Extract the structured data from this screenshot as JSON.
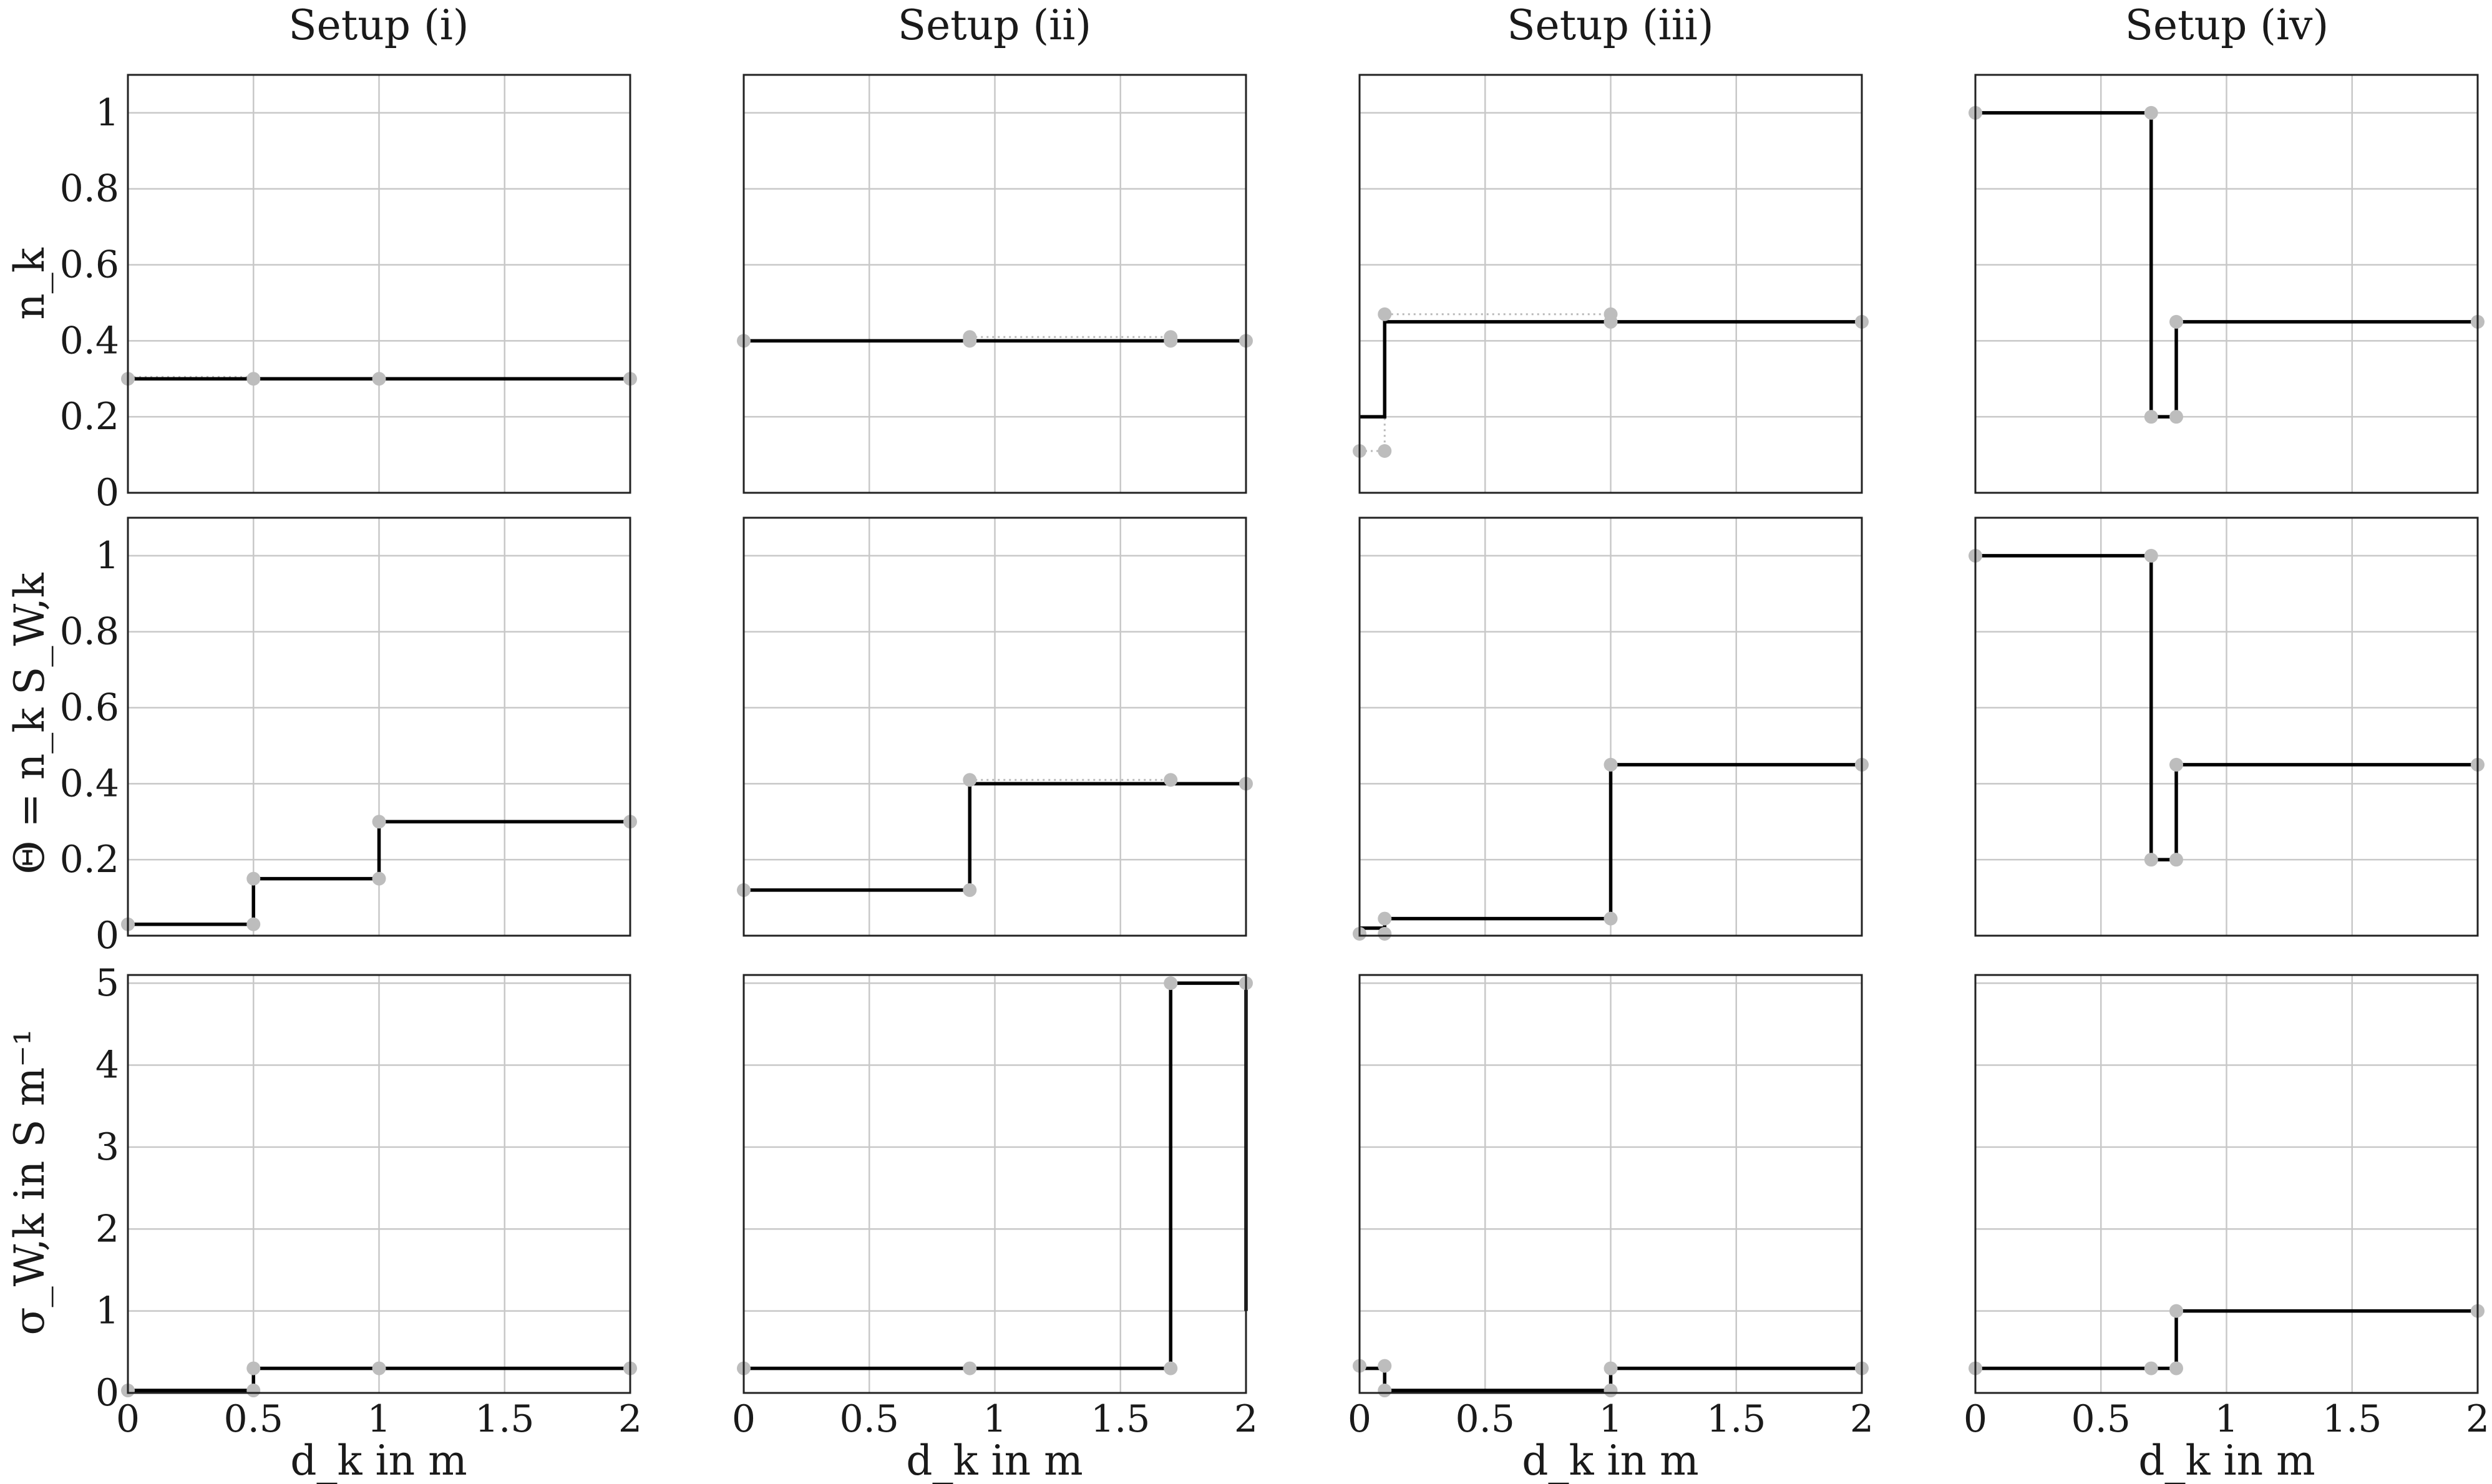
{
  "column_titles": [
    "Setup (i)",
    "Setup (ii)",
    "Setup (iii)",
    "Setup (iv)"
  ],
  "row_ylabels": [
    "n_k",
    "Θ = n_k S_W,k",
    "σ_W,k in S m⁻¹"
  ],
  "xlabel": "d_k in m",
  "chart_data": [
    {
      "type": "line",
      "setup": "Setup (i)",
      "quantity": "n_k",
      "xlabel": "",
      "ylabel": "n_k",
      "xlim": [
        0,
        2
      ],
      "ylim": [
        0,
        1.1
      ],
      "xticks": [
        "0",
        "0.5",
        "1",
        "1.5",
        "2"
      ],
      "yticks": [
        "0",
        "0.2",
        "0.4",
        "0.6",
        "0.8",
        "1"
      ],
      "grid": true,
      "series": [
        {
          "role": "step",
          "x": [
            0,
            0.5,
            1,
            2
          ],
          "y": [
            0.3,
            0.3,
            0.3,
            0.3
          ]
        },
        {
          "role": "markers",
          "x": [
            0,
            0.5,
            1,
            2
          ],
          "y": [
            0.3,
            0.3,
            0.3,
            0.3
          ]
        },
        {
          "role": "dotted-reference",
          "x": [
            0,
            0.5
          ],
          "y": [
            0.305,
            0.305
          ]
        }
      ]
    },
    {
      "type": "line",
      "setup": "Setup (ii)",
      "quantity": "n_k",
      "xlabel": "",
      "ylabel": "",
      "xlim": [
        0,
        2
      ],
      "ylim": [
        0,
        1.1
      ],
      "xticks": [
        "0",
        "0.5",
        "1",
        "1.5",
        "2"
      ],
      "yticks": [
        "0",
        "0.2",
        "0.4",
        "0.6",
        "0.8",
        "1"
      ],
      "grid": true,
      "series": [
        {
          "role": "step",
          "x": [
            0,
            0.9,
            1.7,
            2
          ],
          "y": [
            0.4,
            0.4,
            0.4,
            0.4
          ]
        },
        {
          "role": "markers",
          "x": [
            0,
            0.9,
            0.9,
            1.7,
            1.7,
            2
          ],
          "y": [
            0.4,
            0.41,
            0.4,
            0.41,
            0.4,
            0.4
          ]
        },
        {
          "role": "dotted-reference",
          "x": [
            0.9,
            1.7
          ],
          "y": [
            0.41,
            0.41
          ]
        }
      ]
    },
    {
      "type": "line",
      "setup": "Setup (iii)",
      "quantity": "n_k",
      "xlabel": "",
      "ylabel": "",
      "xlim": [
        0,
        2
      ],
      "ylim": [
        0,
        1.1
      ],
      "xticks": [
        "0",
        "0.5",
        "1",
        "1.5",
        "2"
      ],
      "yticks": [
        "0",
        "0.2",
        "0.4",
        "0.6",
        "0.8",
        "1"
      ],
      "grid": true,
      "series": [
        {
          "role": "step",
          "x": [
            0,
            0.1,
            0.1,
            2
          ],
          "y": [
            0.2,
            0.2,
            0.45,
            0.45
          ]
        },
        {
          "role": "markers",
          "x": [
            0,
            0.1,
            0.1,
            1,
            1,
            2
          ],
          "y": [
            0.11,
            0.11,
            0.47,
            0.47,
            0.45,
            0.45
          ]
        },
        {
          "role": "dotted-reference",
          "x": [
            0,
            0.1,
            0.1,
            1
          ],
          "y": [
            0.11,
            0.11,
            0.47,
            0.47
          ]
        }
      ]
    },
    {
      "type": "line",
      "setup": "Setup (iv)",
      "quantity": "n_k",
      "xlabel": "",
      "ylabel": "",
      "xlim": [
        0,
        2
      ],
      "ylim": [
        0,
        1.1
      ],
      "xticks": [
        "0",
        "0.5",
        "1",
        "1.5",
        "2"
      ],
      "yticks": [
        "0",
        "0.2",
        "0.4",
        "0.6",
        "0.8",
        "1"
      ],
      "grid": true,
      "series": [
        {
          "role": "step",
          "x": [
            0,
            0.7,
            0.7,
            0.8,
            0.8,
            2
          ],
          "y": [
            1,
            1,
            0.2,
            0.2,
            0.45,
            0.45
          ]
        },
        {
          "role": "markers",
          "x": [
            0,
            0.7,
            0.7,
            0.8,
            0.8,
            2
          ],
          "y": [
            1,
            1,
            0.2,
            0.2,
            0.45,
            0.45
          ]
        }
      ]
    },
    {
      "type": "line",
      "setup": "Setup (i)",
      "quantity": "Θ = n_k S_W,k",
      "xlabel": "",
      "ylabel": "Θ = n_k S_W,k",
      "xlim": [
        0,
        2
      ],
      "ylim": [
        0,
        1.1
      ],
      "xticks": [
        "0",
        "0.5",
        "1",
        "1.5",
        "2"
      ],
      "yticks": [
        "0",
        "0.2",
        "0.4",
        "0.6",
        "0.8",
        "1"
      ],
      "grid": true,
      "series": [
        {
          "role": "step",
          "x": [
            0,
            0.5,
            0.5,
            1,
            1,
            2
          ],
          "y": [
            0.03,
            0.03,
            0.15,
            0.15,
            0.3,
            0.3
          ]
        },
        {
          "role": "markers",
          "x": [
            0,
            0.5,
            0.5,
            1,
            1,
            2
          ],
          "y": [
            0.03,
            0.03,
            0.15,
            0.15,
            0.3,
            0.3
          ]
        }
      ]
    },
    {
      "type": "line",
      "setup": "Setup (ii)",
      "quantity": "Θ = n_k S_W,k",
      "xlabel": "",
      "ylabel": "",
      "xlim": [
        0,
        2
      ],
      "ylim": [
        0,
        1.1
      ],
      "xticks": [
        "0",
        "0.5",
        "1",
        "1.5",
        "2"
      ],
      "yticks": [
        "0",
        "0.2",
        "0.4",
        "0.6",
        "0.8",
        "1"
      ],
      "grid": true,
      "series": [
        {
          "role": "step",
          "x": [
            0,
            0.9,
            0.9,
            2
          ],
          "y": [
            0.12,
            0.12,
            0.4,
            0.4
          ]
        },
        {
          "role": "markers",
          "x": [
            0,
            0.9,
            0.9,
            1.7,
            2
          ],
          "y": [
            0.12,
            0.12,
            0.41,
            0.41,
            0.4
          ]
        },
        {
          "role": "dotted-reference",
          "x": [
            0.9,
            1.7
          ],
          "y": [
            0.41,
            0.41
          ]
        }
      ]
    },
    {
      "type": "line",
      "setup": "Setup (iii)",
      "quantity": "Θ = n_k S_W,k",
      "xlabel": "",
      "ylabel": "",
      "xlim": [
        0,
        2
      ],
      "ylim": [
        0,
        1.1
      ],
      "xticks": [
        "0",
        "0.5",
        "1",
        "1.5",
        "2"
      ],
      "yticks": [
        "0",
        "0.2",
        "0.4",
        "0.6",
        "0.8",
        "1"
      ],
      "grid": true,
      "series": [
        {
          "role": "step",
          "x": [
            0,
            0.1,
            0.1,
            1,
            1,
            2
          ],
          "y": [
            0.02,
            0.02,
            0.045,
            0.045,
            0.45,
            0.45
          ]
        },
        {
          "role": "markers",
          "x": [
            0,
            0.1,
            0.1,
            1,
            1,
            2
          ],
          "y": [
            0.005,
            0.005,
            0.045,
            0.045,
            0.45,
            0.45
          ]
        }
      ]
    },
    {
      "type": "line",
      "setup": "Setup (iv)",
      "quantity": "Θ = n_k S_W,k",
      "xlabel": "",
      "ylabel": "",
      "xlim": [
        0,
        2
      ],
      "ylim": [
        0,
        1.1
      ],
      "xticks": [
        "0",
        "0.5",
        "1",
        "1.5",
        "2"
      ],
      "yticks": [
        "0",
        "0.2",
        "0.4",
        "0.6",
        "0.8",
        "1"
      ],
      "grid": true,
      "series": [
        {
          "role": "step",
          "x": [
            0,
            0.7,
            0.7,
            0.8,
            0.8,
            2
          ],
          "y": [
            1,
            1,
            0.2,
            0.2,
            0.45,
            0.45
          ]
        },
        {
          "role": "markers",
          "x": [
            0,
            0.7,
            0.7,
            0.8,
            0.8,
            2
          ],
          "y": [
            1,
            1,
            0.2,
            0.2,
            0.45,
            0.45
          ]
        }
      ]
    },
    {
      "type": "line",
      "setup": "Setup (i)",
      "quantity": "σ_W,k",
      "xlabel": "d_k in m",
      "ylabel": "σ_W,k in S m⁻¹",
      "xlim": [
        0,
        2
      ],
      "ylim": [
        0,
        5.1
      ],
      "xticks": [
        "0",
        "0.5",
        "1",
        "1.5",
        "2"
      ],
      "yticks": [
        "0",
        "1",
        "2",
        "3",
        "4",
        "5"
      ],
      "grid": true,
      "series": [
        {
          "role": "step",
          "x": [
            0,
            0.5,
            0.5,
            2
          ],
          "y": [
            0.03,
            0.03,
            0.3,
            0.3
          ]
        },
        {
          "role": "markers",
          "x": [
            0,
            0.5,
            0.5,
            1,
            2
          ],
          "y": [
            0.03,
            0.03,
            0.3,
            0.3,
            0.3
          ]
        }
      ]
    },
    {
      "type": "line",
      "setup": "Setup (ii)",
      "quantity": "σ_W,k",
      "xlabel": "d_k in m",
      "ylabel": "",
      "xlim": [
        0,
        2
      ],
      "ylim": [
        0,
        5.1
      ],
      "xticks": [
        "0",
        "0.5",
        "1",
        "1.5",
        "2"
      ],
      "yticks": [
        "0",
        "1",
        "2",
        "3",
        "4",
        "5"
      ],
      "grid": true,
      "series": [
        {
          "role": "step",
          "x": [
            0,
            1.7,
            1.7,
            2,
            2
          ],
          "y": [
            0.3,
            0.3,
            5,
            5,
            1
          ]
        },
        {
          "role": "markers",
          "x": [
            0,
            0.9,
            1.7,
            1.7,
            2
          ],
          "y": [
            0.3,
            0.3,
            0.3,
            5,
            5
          ]
        }
      ]
    },
    {
      "type": "line",
      "setup": "Setup (iii)",
      "quantity": "σ_W,k",
      "xlabel": "d_k in m",
      "ylabel": "",
      "xlim": [
        0,
        2
      ],
      "ylim": [
        0,
        5.1
      ],
      "xticks": [
        "0",
        "0.5",
        "1",
        "1.5",
        "2"
      ],
      "yticks": [
        "0",
        "1",
        "2",
        "3",
        "4",
        "5"
      ],
      "grid": true,
      "series": [
        {
          "role": "step",
          "x": [
            0,
            0.1,
            0.1,
            1,
            1,
            2
          ],
          "y": [
            0.3,
            0.3,
            0.03,
            0.03,
            0.3,
            0.3
          ]
        },
        {
          "role": "markers",
          "x": [
            0,
            0.1,
            0.1,
            1,
            1,
            2
          ],
          "y": [
            0.33,
            0.33,
            0.03,
            0.03,
            0.3,
            0.3
          ]
        }
      ]
    },
    {
      "type": "line",
      "setup": "Setup (iv)",
      "quantity": "σ_W,k",
      "xlabel": "d_k in m",
      "ylabel": "",
      "xlim": [
        0,
        2
      ],
      "ylim": [
        0,
        5.1
      ],
      "xticks": [
        "0",
        "0.5",
        "1",
        "1.5",
        "2"
      ],
      "yticks": [
        "0",
        "1",
        "2",
        "3",
        "4",
        "5"
      ],
      "grid": true,
      "series": [
        {
          "role": "step",
          "x": [
            0,
            0.8,
            0.8,
            2
          ],
          "y": [
            0.3,
            0.3,
            1,
            1
          ]
        },
        {
          "role": "markers",
          "x": [
            0,
            0.7,
            0.8,
            0.8,
            2
          ],
          "y": [
            0.3,
            0.3,
            0.3,
            1,
            1
          ]
        }
      ]
    }
  ]
}
